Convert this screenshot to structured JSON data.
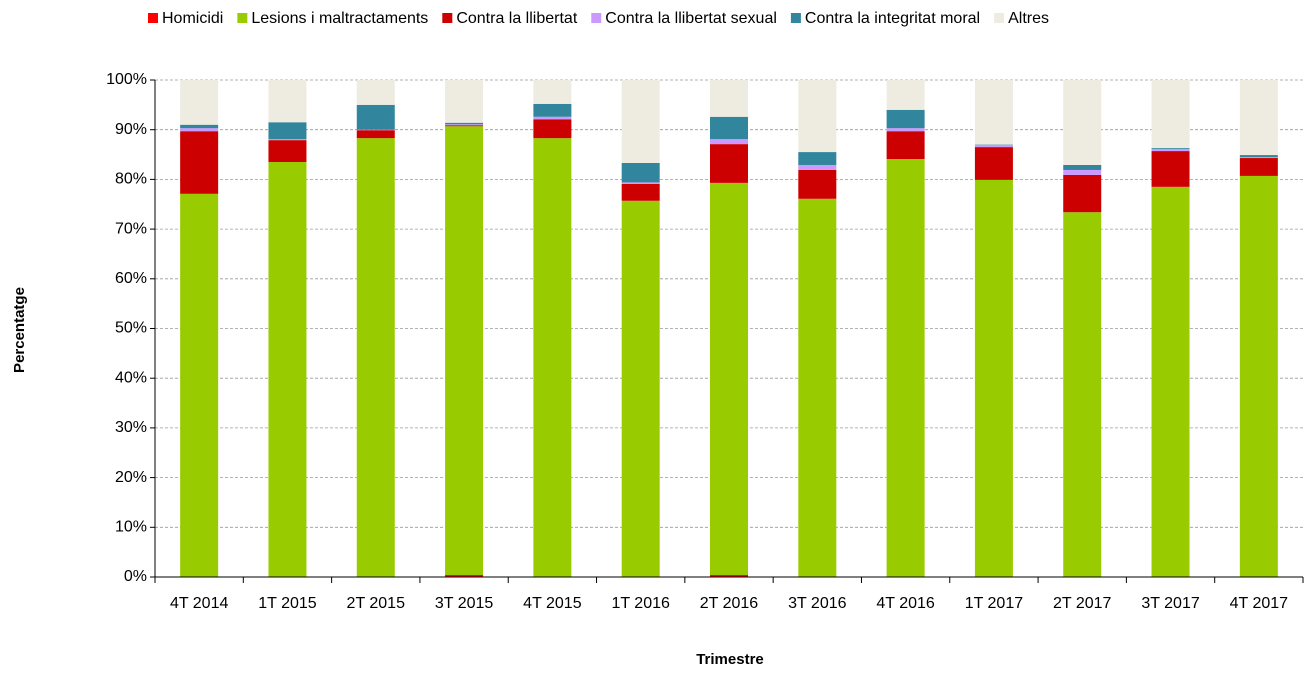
{
  "chart_data": {
    "type": "stacked_bar",
    "x_label": "Trimestre",
    "y_label": "Percentatge",
    "categories": [
      "4T 2014",
      "1T 2015",
      "2T 2015",
      "3T 2015",
      "4T 2015",
      "1T 2016",
      "2T 2016",
      "3T 2016",
      "4T 2016",
      "1T 2017",
      "2T 2017",
      "3T 2017",
      "4T 2017"
    ],
    "series": [
      {
        "name": "Homicidi",
        "color": "#ff0000",
        "values": [
          0,
          0,
          0,
          0.4,
          0,
          0,
          0.4,
          0,
          0,
          0,
          0,
          0,
          0
        ]
      },
      {
        "name": "Lesions i maltractaments",
        "color": "#99cc00",
        "values": [
          77.1,
          83.5,
          88.3,
          90.3,
          88.3,
          75.7,
          78.9,
          76.1,
          84.1,
          79.9,
          73.4,
          78.5,
          80.7
        ]
      },
      {
        "name": "Contra la llibertat",
        "color": "#cc0000",
        "values": [
          12.6,
          4.4,
          1.6,
          0.2,
          3.8,
          3.4,
          7.8,
          5.8,
          5.6,
          6.6,
          7.5,
          7.2,
          3.6
        ]
      },
      {
        "name": "Contra la llibertat sexual",
        "color": "#cc99ff",
        "values": [
          0.6,
          0.2,
          0.1,
          0.2,
          0.5,
          0.3,
          1.0,
          1.0,
          0.6,
          0.4,
          1.0,
          0.4,
          0.2
        ]
      },
      {
        "name": "Contra la integritat moral",
        "color": "#31859c",
        "values": [
          0.7,
          3.4,
          5.0,
          0.3,
          2.6,
          3.9,
          4.5,
          2.6,
          3.7,
          0.1,
          1.0,
          0.2,
          0.4
        ]
      },
      {
        "name": "Altres",
        "color": "#eeece1",
        "values": [
          9.0,
          8.5,
          5.0,
          8.6,
          4.8,
          16.7,
          7.4,
          14.5,
          6.0,
          13.0,
          17.1,
          13.7,
          15.1
        ]
      }
    ],
    "ylim": [
      0,
      100
    ],
    "yticks": [
      {
        "value": 0,
        "label": "0%"
      },
      {
        "value": 10,
        "label": "10%"
      },
      {
        "value": 20,
        "label": "20%"
      },
      {
        "value": 30,
        "label": "30%"
      },
      {
        "value": 40,
        "label": "40%"
      },
      {
        "value": 50,
        "label": "50%"
      },
      {
        "value": 60,
        "label": "60%"
      },
      {
        "value": 70,
        "label": "70%"
      },
      {
        "value": 80,
        "label": "80%"
      },
      {
        "value": 90,
        "label": "90%"
      },
      {
        "value": 100,
        "label": "100%"
      }
    ],
    "grid": true,
    "legend": "top"
  }
}
